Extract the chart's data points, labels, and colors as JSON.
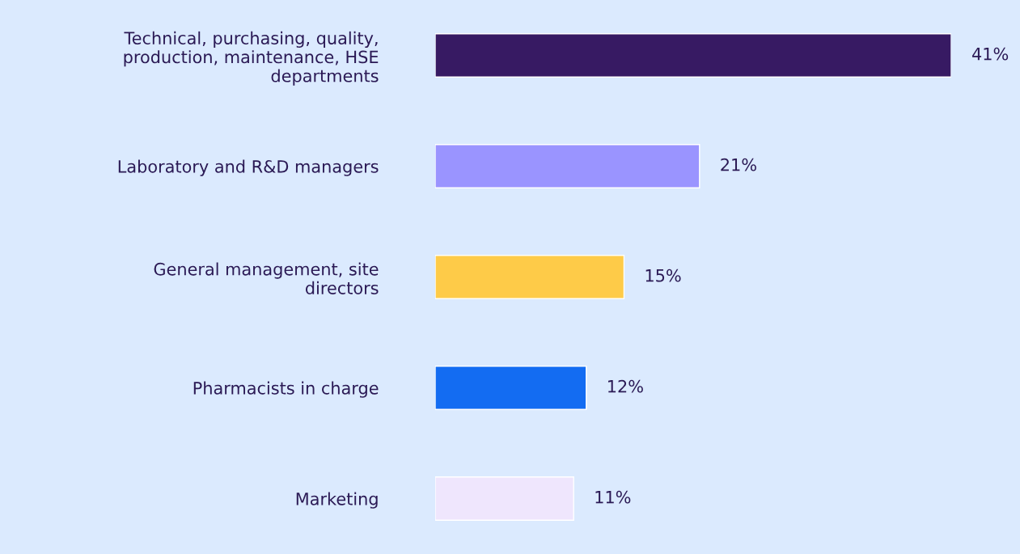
{
  "chart_data": {
    "type": "bar",
    "orientation": "horizontal",
    "categories": [
      "Technical, purchasing, quality,\nproduction, maintenance, HSE\ndepartments",
      "Laboratory and R&D managers",
      "General management, site\ndirectors",
      "Pharmacists in charge",
      "Marketing"
    ],
    "values": [
      41,
      21,
      15,
      12,
      11
    ],
    "colors": [
      "#371a63",
      "#9a94ff",
      "#fecb48",
      "#136cf2",
      "#efe6fd"
    ],
    "value_labels": [
      "41%",
      "21%",
      "15%",
      "12%",
      "11%"
    ],
    "tick_labels": "y"
  }
}
